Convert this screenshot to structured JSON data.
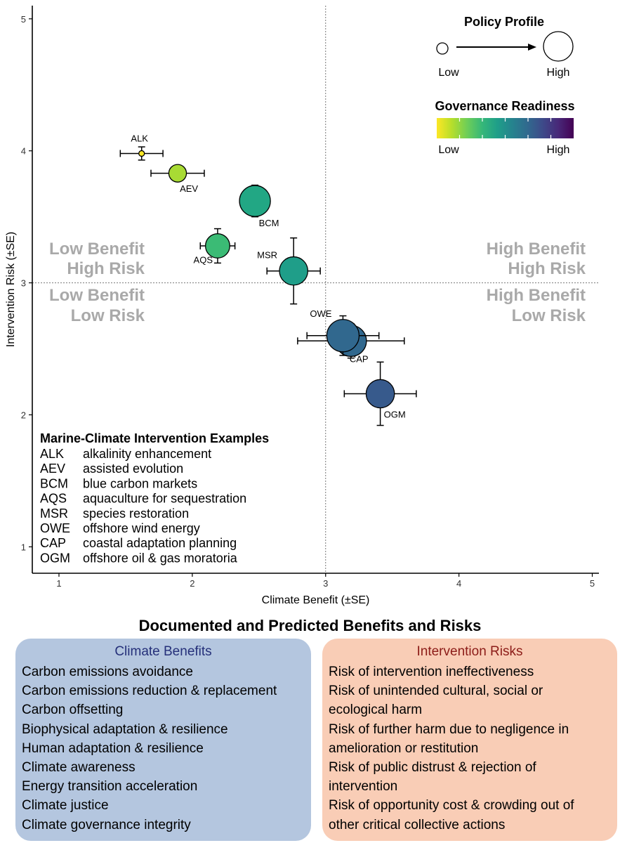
{
  "chart_data": {
    "type": "scatter",
    "xlabel": "Climate Benefit (±SE)",
    "ylabel": "Intervention Risk (±SE)",
    "xlim": [
      0.8,
      5.05
    ],
    "ylim": [
      0.8,
      5.1
    ],
    "xticks": [
      1,
      2,
      3,
      4,
      5
    ],
    "yticks": [
      1,
      2,
      3,
      4,
      5
    ],
    "reference_lines": {
      "x": 3,
      "y": 3
    },
    "grid": false,
    "quadrant_labels": [
      {
        "name": "top-left",
        "lines": [
          "Low Benefit",
          "High Risk"
        ]
      },
      {
        "name": "bottom-left",
        "lines": [
          "Low Benefit",
          "Low Risk"
        ]
      },
      {
        "name": "top-right",
        "lines": [
          "High Benefit",
          "High Risk"
        ]
      },
      {
        "name": "bottom-right",
        "lines": [
          "High Benefit",
          "Low Risk"
        ]
      }
    ],
    "points": [
      {
        "label": "ALK",
        "x": 1.62,
        "y": 3.98,
        "xerr": 0.16,
        "yerr": 0.05,
        "profile": 0.0,
        "readiness": 0.0,
        "color": "#fde725",
        "label_pos": "above"
      },
      {
        "label": "AEV",
        "x": 1.89,
        "y": 3.83,
        "xerr": 0.2,
        "yerr": 0.04,
        "profile": 0.45,
        "readiness": 0.15,
        "color": "#a8db34",
        "label_pos": "below-right"
      },
      {
        "label": "BCM",
        "x": 2.47,
        "y": 3.62,
        "xerr": 0.1,
        "yerr": 0.12,
        "profile": 0.95,
        "readiness": 0.45,
        "color": "#22a784",
        "label_pos": "below-right"
      },
      {
        "label": "AQS",
        "x": 2.19,
        "y": 3.28,
        "xerr": 0.13,
        "yerr": 0.13,
        "profile": 0.7,
        "readiness": 0.3,
        "color": "#3bbb75",
        "label_pos": "below-left"
      },
      {
        "label": "MSR",
        "x": 2.76,
        "y": 3.09,
        "xerr": 0.2,
        "yerr": 0.25,
        "profile": 0.85,
        "readiness": 0.5,
        "color": "#1f9e89",
        "label_pos": "above-left"
      },
      {
        "label": "CAP",
        "x": 3.19,
        "y": 2.56,
        "xerr": 0.4,
        "yerr": 0.13,
        "profile": 0.95,
        "readiness": 0.7,
        "color": "#31688e",
        "label_pos": "below-right"
      },
      {
        "label": "OWE",
        "x": 3.13,
        "y": 2.6,
        "xerr": 0.27,
        "yerr": 0.15,
        "profile": 1.0,
        "readiness": 0.7,
        "color": "#31688e",
        "label_pos": "above-left"
      },
      {
        "label": "OGM",
        "x": 3.41,
        "y": 2.16,
        "xerr": 0.27,
        "yerr": 0.24,
        "profile": 0.85,
        "readiness": 0.72,
        "color": "#375a8c",
        "label_pos": "below-right"
      }
    ],
    "legend_size": {
      "title": "Policy Profile",
      "low": "Low",
      "high": "High",
      "placement": "top-right"
    },
    "legend_color": {
      "title": "Governance Readiness",
      "low": "Low",
      "high": "High",
      "placement": "top-right",
      "colors": [
        "#fde725",
        "#b5de2b",
        "#6ece58",
        "#35b779",
        "#1f9e89",
        "#26828e",
        "#31688e",
        "#3e4989",
        "#482878",
        "#440154"
      ]
    },
    "examples": {
      "title": "Marine-Climate Intervention Examples",
      "items": [
        {
          "code": "ALK",
          "desc": "alkalinity enhancement"
        },
        {
          "code": "AEV",
          "desc": "assisted evolution"
        },
        {
          "code": "BCM",
          "desc": "blue carbon markets"
        },
        {
          "code": "AQS",
          "desc": "aquaculture for sequestration"
        },
        {
          "code": "MSR",
          "desc": "species restoration"
        },
        {
          "code": "OWE",
          "desc": "offshore wind energy"
        },
        {
          "code": "CAP",
          "desc": "coastal adaptation planning"
        },
        {
          "code": "OGM",
          "desc": "offshore oil & gas moratoria"
        }
      ]
    }
  },
  "section": {
    "title": "Documented and Predicted Benefits and Risks",
    "benefits": {
      "title": "Climate Benefits",
      "items": [
        "Carbon emissions avoidance",
        "Carbon emissions reduction & replacement",
        "Carbon offsetting",
        "Biophysical adaptation & resilience",
        "Human adaptation & resilience",
        "Climate awareness",
        "Energy transition acceleration",
        "Climate justice",
        "Climate governance integrity"
      ]
    },
    "risks": {
      "title": "Intervention Risks",
      "items": [
        "Risk of intervention ineffectiveness",
        "Risk of unintended cultural, social or",
        "ecological harm",
        "Risk of further harm due to negligence in",
        "amelioration or restitution",
        "Risk of public distrust & rejection of",
        "intervention",
        "Risk of opportunity cost & crowding out of",
        "other critical collective actions"
      ]
    }
  }
}
